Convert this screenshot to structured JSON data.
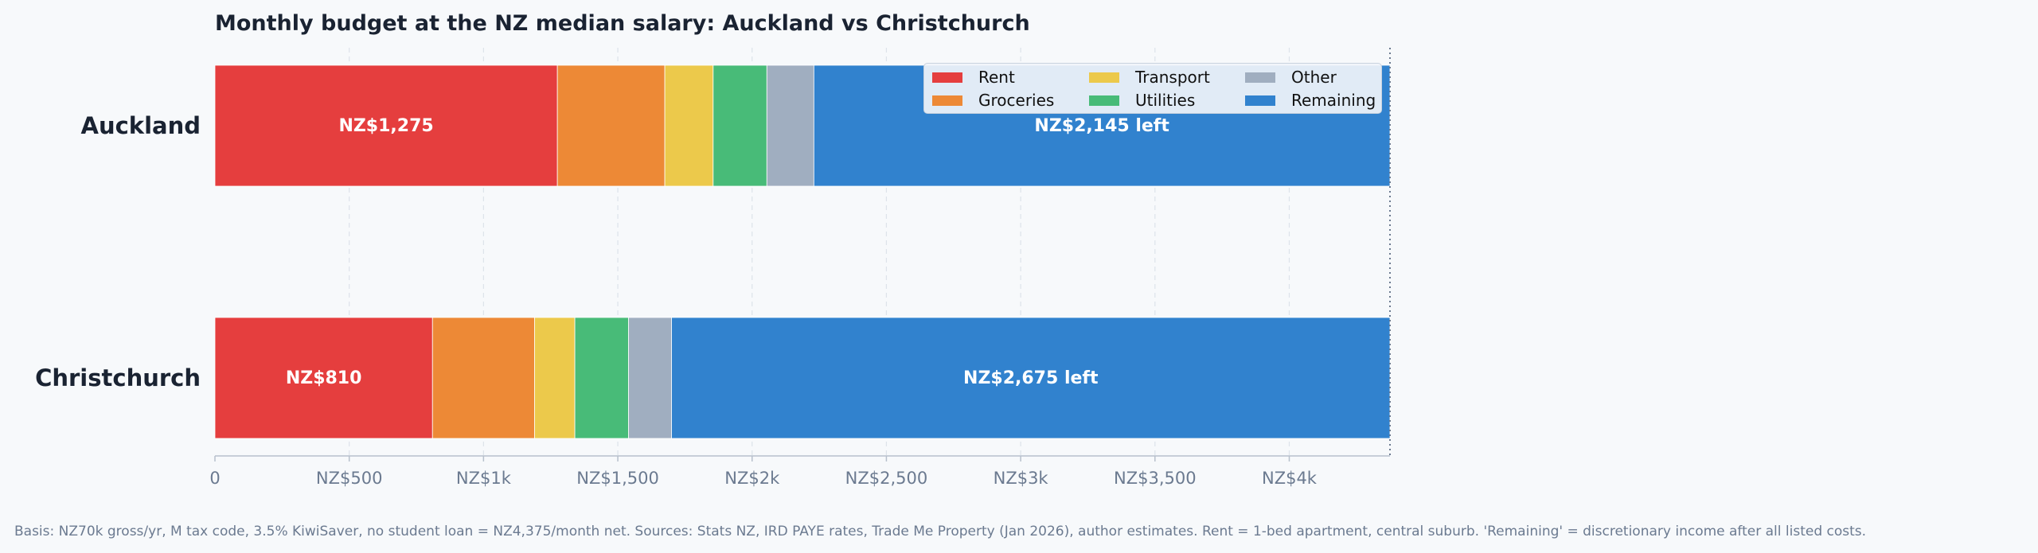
{
  "chart_data": {
    "type": "bar",
    "orientation": "horizontal",
    "stacked": true,
    "title": "Monthly budget at the NZ median salary: Auckland vs Christchurch",
    "categories": [
      "Auckland",
      "Christchurch"
    ],
    "series": [
      {
        "name": "Rent",
        "color": "#e53e3e",
        "values": [
          1275,
          810
        ]
      },
      {
        "name": "Groceries",
        "color": "#ed8936",
        "values": [
          400,
          380
        ]
      },
      {
        "name": "Transport",
        "color": "#ecc94b",
        "values": [
          180,
          150
        ]
      },
      {
        "name": "Utilities",
        "color": "#48bb78",
        "values": [
          200,
          200
        ]
      },
      {
        "name": "Other",
        "color": "#a0aec0",
        "values": [
          175,
          160
        ]
      },
      {
        "name": "Remaining",
        "color": "#3182ce",
        "values": [
          2145,
          2675
        ]
      }
    ],
    "bar_labels": [
      {
        "rent": "NZ$1,275",
        "remaining": "NZ$2,145 left"
      },
      {
        "rent": "NZ$810",
        "remaining": "NZ$2,675 left"
      }
    ],
    "xlim": [
      0,
      4375
    ],
    "xticks": [
      0,
      500,
      1000,
      1500,
      2000,
      2500,
      3000,
      3500,
      4000
    ],
    "xtick_labels": [
      "0",
      "NZ$500",
      "NZ$1k",
      "NZ$1,500",
      "NZ$2k",
      "NZ$2,500",
      "NZ$3k",
      "NZ$3,500",
      "NZ$4k"
    ],
    "reference_line": 4375,
    "grid": true,
    "legend_position": "top-right"
  },
  "footnote": "Basis: NZ70k gross/yr, M tax code, 3.5% KiwiSaver, no student loan = NZ4,375/month net.  Sources: Stats NZ, IRD PAYE rates, Trade Me Property (Jan 2026), author estimates.  Rent = 1-bed apartment, central suburb.  'Remaining' = discretionary income after all listed costs."
}
